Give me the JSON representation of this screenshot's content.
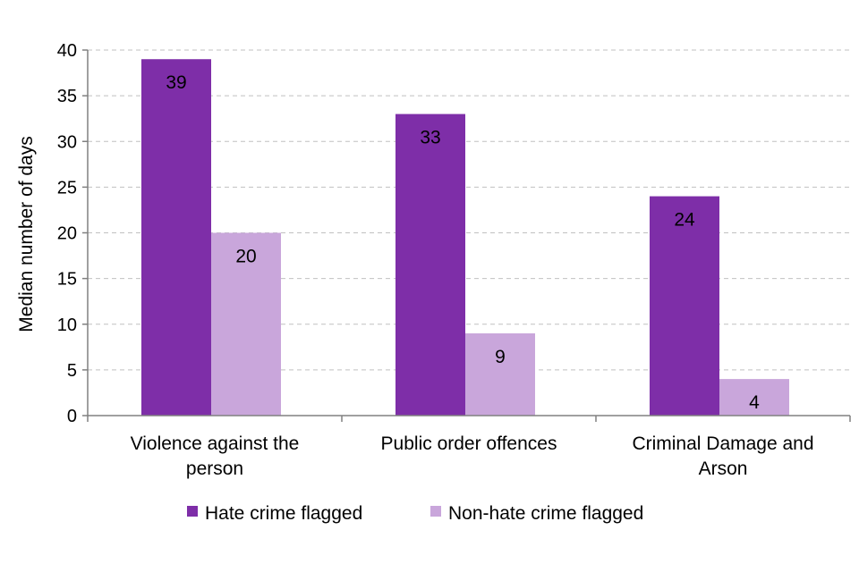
{
  "chart_data": {
    "type": "bar",
    "title": "",
    "xlabel": "",
    "ylabel": "Median number of days",
    "ylim": [
      0,
      40
    ],
    "yticks": [
      0,
      5,
      10,
      15,
      20,
      25,
      30,
      35,
      40
    ],
    "grid": true,
    "legend_position": "bottom",
    "categories": [
      [
        "Violence against the",
        "person"
      ],
      [
        "Public order offences"
      ],
      [
        "Criminal Damage and",
        "Arson"
      ]
    ],
    "series": [
      {
        "name": "Hate crime flagged",
        "color": "#7e2ea8",
        "values": [
          39,
          33,
          24
        ]
      },
      {
        "name": "Non-hate crime flagged",
        "color": "#c9a6db",
        "values": [
          20,
          9,
          4
        ]
      }
    ]
  }
}
